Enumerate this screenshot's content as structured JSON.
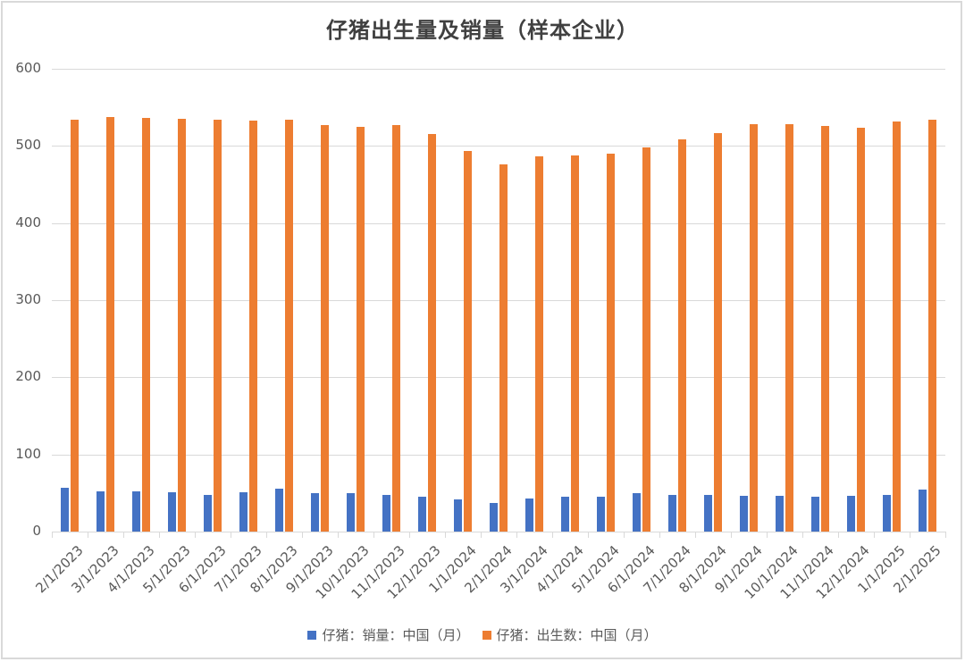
{
  "chart_data": {
    "type": "bar",
    "title": "仔猪出生量及销量（样本企业）",
    "xlabel": "",
    "ylabel": "",
    "ylim": [
      0,
      600
    ],
    "yticks": [
      0,
      100,
      200,
      300,
      400,
      500,
      600
    ],
    "grid": true,
    "legend_position": "bottom",
    "categories": [
      "2/1/2023",
      "3/1/2023",
      "4/1/2023",
      "5/1/2023",
      "6/1/2023",
      "7/1/2023",
      "8/1/2023",
      "9/1/2023",
      "10/1/2023",
      "11/1/2023",
      "12/1/2023",
      "1/1/2024",
      "2/1/2024",
      "3/1/2024",
      "4/1/2024",
      "5/1/2024",
      "6/1/2024",
      "7/1/2024",
      "8/1/2024",
      "9/1/2024",
      "10/1/2024",
      "11/1/2024",
      "12/1/2024",
      "1/1/2025",
      "2/1/2025"
    ],
    "series": [
      {
        "name": "仔猪：销量：中国（月）",
        "color": "#4472c4",
        "values": [
          57,
          52,
          52,
          51,
          48,
          51,
          56,
          50,
          50,
          48,
          45,
          42,
          37,
          43,
          45,
          45,
          50,
          48,
          48,
          46,
          46,
          45,
          46,
          48,
          55
        ]
      },
      {
        "name": "仔猪：出生数：中国（月）",
        "color": "#ed7d31",
        "values": [
          534,
          537,
          536,
          535,
          534,
          533,
          534,
          527,
          525,
          527,
          516,
          493,
          476,
          487,
          488,
          490,
          498,
          508,
          517,
          528,
          528,
          526,
          524,
          532,
          534
        ]
      }
    ]
  },
  "legend": {
    "items": [
      {
        "label": "仔猪：销量：中国（月）",
        "color": "#4472c4"
      },
      {
        "label": "仔猪：出生数：中国（月）",
        "color": "#ed7d31"
      }
    ]
  }
}
